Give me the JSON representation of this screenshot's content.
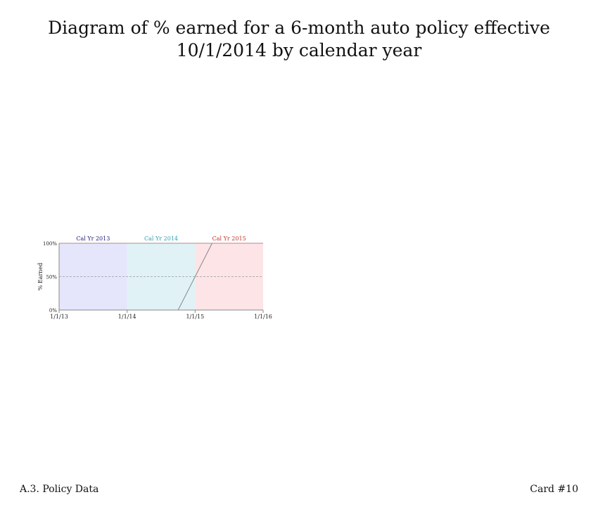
{
  "title": "Diagram of % earned for a 6-month auto policy effective 10/1/2014 by calendar year",
  "footer": {
    "left": "A.3. Policy Data",
    "right": "Card #10"
  },
  "chart_data": {
    "type": "area",
    "title": "",
    "xlabel": "",
    "ylabel": "% Earned",
    "x_ticks": [
      "1/1/13",
      "1/1/14",
      "1/1/15",
      "1/1/16"
    ],
    "x_range_years": [
      2013,
      2016
    ],
    "y_ticks": [
      "0%",
      "50%",
      "100%"
    ],
    "y_range": [
      0,
      100
    ],
    "reference_line": {
      "value": 50,
      "style": "dashed"
    },
    "calendar_years": [
      {
        "label": "Cal Yr 2013",
        "start": 2013,
        "end": 2014,
        "fill": "#e5e5fc",
        "text_color": "#1a1a7a"
      },
      {
        "label": "Cal Yr 2014",
        "start": 2014,
        "end": 2015,
        "fill": "#e0f2f5",
        "text_color": "#2a9fb5"
      },
      {
        "label": "Cal Yr 2015",
        "start": 2015,
        "end": 2016,
        "fill": "#fde4e6",
        "text_color": "#c0302a"
      }
    ],
    "series": [
      {
        "name": "% earned",
        "color": "#888888",
        "points": [
          {
            "date": "10/1/2014",
            "x": 2014.75,
            "y": 0
          },
          {
            "date": "4/1/2015",
            "x": 2015.25,
            "y": 100
          }
        ]
      }
    ]
  }
}
